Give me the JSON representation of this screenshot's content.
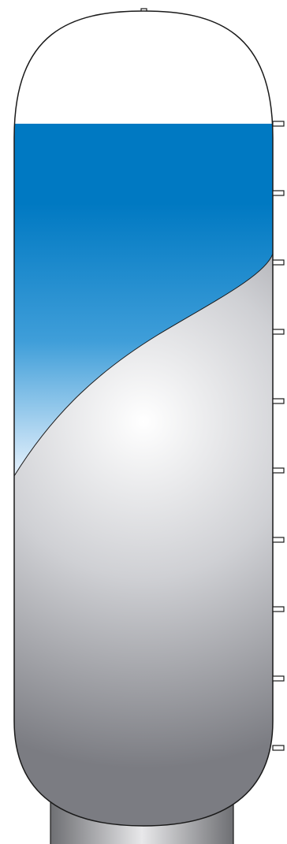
{
  "diagram": {
    "subject": "storage-tank",
    "colors": {
      "outline": "#1a1a1a",
      "liquid_top": "#0079c2",
      "liquid_mid": "#3f9ed9",
      "liquid_bottom": "#f4f8ff",
      "sediment_highlight": "#ffffff",
      "sediment_mid": "#cfd0d4",
      "sediment_shadow": "#7b7c82",
      "base_light": "#e8e8ea",
      "base_dark": "#6e6f73",
      "nozzle_fill": "#ffffff"
    },
    "top_nozzle": {
      "icon": "pipe-nozzle-icon"
    },
    "side_nozzles": {
      "icon": "pipe-nozzle-icon",
      "count": 10
    }
  }
}
